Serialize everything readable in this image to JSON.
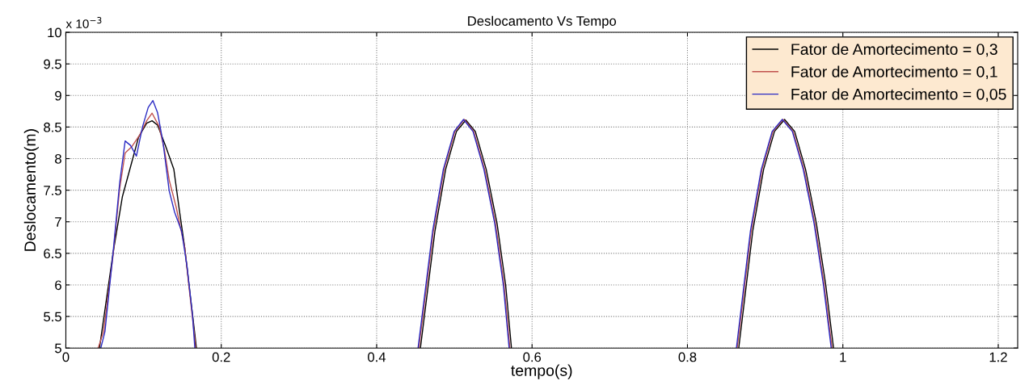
{
  "chart_data": {
    "type": "line",
    "title": "Deslocamento Vs Tempo",
    "xlabel": "tempo(s)",
    "ylabel": "Deslocamento(m)",
    "annotations": [
      "x 10$^{−3}$"
    ],
    "xlim": [
      0,
      1.225
    ],
    "xticks": [
      0,
      0.2,
      0.4,
      0.6,
      0.8,
      1,
      1.2
    ],
    "ylim": [
      5,
      10
    ],
    "yticks": [
      5,
      5.5,
      6,
      6.5,
      7,
      7.5,
      8,
      8.5,
      9,
      9.5,
      10
    ],
    "grid": true,
    "legend": "top right",
    "line_style": "solid",
    "marker": "none",
    "series": [
      {
        "name": "Fator de Amortecimento = 0,3",
        "color": "#000000",
        "x": [
          0.0433,
          0.0607,
          0.0728,
          0.0832,
          0.0936,
          0.104,
          0.111,
          0.118,
          0.128,
          0.139,
          0.146,
          0.153,
          0.159,
          0.166,
          0.168,
          0.3,
          0.4563,
          0.4646,
          0.475,
          0.4888,
          0.5027,
          0.5148,
          0.527,
          0.541,
          0.555,
          0.566,
          0.5735,
          0.7,
          0.866,
          0.874,
          0.884,
          0.898,
          0.912,
          0.925,
          0.938,
          0.952,
          0.966,
          0.978,
          0.988
        ],
        "values": [
          5,
          6.5,
          7.4,
          7.87,
          8.34,
          8.56,
          8.6,
          8.53,
          8.21,
          7.83,
          7.19,
          6.59,
          5.95,
          5.22,
          5,
          null,
          5,
          5.82,
          6.85,
          7.83,
          8.43,
          8.61,
          8.43,
          7.83,
          6.97,
          6.0,
          5,
          null,
          5,
          5.82,
          6.85,
          7.83,
          8.43,
          8.62,
          8.43,
          7.83,
          6.97,
          6.0,
          5
        ]
      },
      {
        "name": "Fator de Amortecimento = 0,1",
        "color": "#c0504d",
        "x": [
          0.0416,
          0.0485,
          0.0607,
          0.0693,
          0.0763,
          0.0849,
          0.0953,
          0.104,
          0.111,
          0.12,
          0.127,
          0.133,
          0.142,
          0.153,
          0.159,
          0.166,
          0.167,
          0.3,
          0.4543,
          0.4626,
          0.473,
          0.4868,
          0.5007,
          0.5128,
          0.525,
          0.539,
          0.553,
          0.564,
          0.5715,
          0.7,
          0.864,
          0.872,
          0.882,
          0.896,
          0.91,
          0.923,
          0.936,
          0.95,
          0.964,
          0.976,
          0.986
        ],
        "values": [
          5,
          5.26,
          6.46,
          7.53,
          8.09,
          8.19,
          8.38,
          8.6,
          8.72,
          8.51,
          8.13,
          7.66,
          7.23,
          6.59,
          5.91,
          5.14,
          5,
          null,
          5,
          5.82,
          6.85,
          7.83,
          8.43,
          8.62,
          8.43,
          7.83,
          6.97,
          6.0,
          5,
          null,
          5,
          5.82,
          6.85,
          7.83,
          8.43,
          8.62,
          8.43,
          7.83,
          6.97,
          6.0,
          5
        ]
      },
      {
        "name": "Fator de Amortecimento = 0,05",
        "color": "#2b2bc4",
        "x": [
          0.045,
          0.0503,
          0.0607,
          0.0693,
          0.0763,
          0.0832,
          0.0908,
          0.0988,
          0.106,
          0.112,
          0.118,
          0.125,
          0.133,
          0.14,
          0.149,
          0.156,
          0.163,
          0.166,
          0.3,
          0.4533,
          0.4616,
          0.472,
          0.4858,
          0.4997,
          0.5118,
          0.524,
          0.538,
          0.552,
          0.563,
          0.5705,
          0.7,
          0.863,
          0.871,
          0.881,
          0.895,
          0.909,
          0.922,
          0.935,
          0.949,
          0.963,
          0.975,
          0.985
        ],
        "values": [
          5,
          5.26,
          6.5,
          7.62,
          8.28,
          8.21,
          8.04,
          8.51,
          8.81,
          8.92,
          8.73,
          8.26,
          7.49,
          7.15,
          6.85,
          6.29,
          5.52,
          5,
          null,
          5,
          5.82,
          6.85,
          7.83,
          8.43,
          8.62,
          8.43,
          7.83,
          6.97,
          6.0,
          5,
          null,
          5,
          5.82,
          6.85,
          7.83,
          8.43,
          8.62,
          8.43,
          7.83,
          6.97,
          6.0,
          5
        ]
      }
    ]
  }
}
